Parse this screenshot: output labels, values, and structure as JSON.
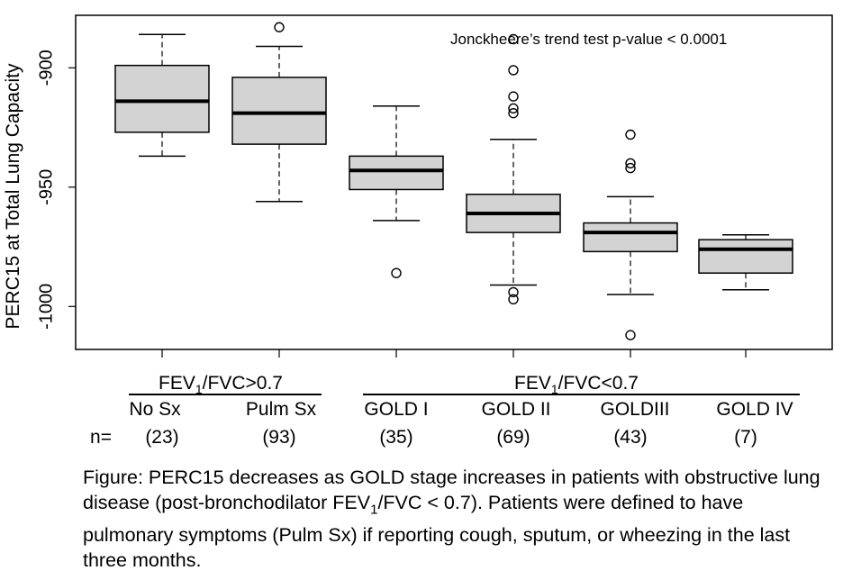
{
  "chart_data": {
    "type": "boxplot",
    "ylabel": "PERC15 at Total Lung Capacity",
    "ylim": [
      -1018,
      -878
    ],
    "yticks": [
      -900,
      -950,
      -1000
    ],
    "ytick_labels": [
      "-900",
      "-950",
      "-1000"
    ],
    "annotation": "Jonckheere’s trend test p-value < 0.0001",
    "n_prefix": "n=",
    "groups": [
      {
        "label_pre": "FEV",
        "label_sub": "1",
        "label_post": "/FVC>0.7",
        "categories": [
          "No Sx",
          "Pulm Sx"
        ]
      },
      {
        "label_pre": "FEV",
        "label_sub": "1",
        "label_post": "/FVC<0.7",
        "categories": [
          "GOLD I",
          "GOLD II",
          "GOLDIII",
          "GOLD IV"
        ]
      }
    ],
    "categories": [
      "No Sx",
      "Pulm Sx",
      "GOLD I",
      "GOLD II",
      "GOLDIII",
      "GOLD IV"
    ],
    "n_labels": [
      "(23)",
      "(93)",
      "(35)",
      "(69)",
      "(43)",
      "(7)"
    ],
    "boxes": [
      {
        "category": "No Sx",
        "whisker_low": -937,
        "q1": -927,
        "median": -914,
        "q3": -899,
        "whisker_high": -886,
        "outliers": []
      },
      {
        "category": "Pulm Sx",
        "whisker_low": -956,
        "q1": -932,
        "median": -919,
        "q3": -904,
        "whisker_high": -891,
        "outliers": [
          -883
        ]
      },
      {
        "category": "GOLD I",
        "whisker_low": -964,
        "q1": -951,
        "median": -943,
        "q3": -937,
        "whisker_high": -916,
        "outliers": [
          -986
        ]
      },
      {
        "category": "GOLD II",
        "whisker_low": -991,
        "q1": -969,
        "median": -961,
        "q3": -953,
        "whisker_high": -930,
        "outliers": [
          -919,
          -917,
          -912,
          -901,
          -888,
          -994,
          -997
        ]
      },
      {
        "category": "GOLDIII",
        "whisker_low": -995,
        "q1": -977,
        "median": -969,
        "q3": -965,
        "whisker_high": -954,
        "outliers": [
          -928,
          -940,
          -942,
          -1012
        ]
      },
      {
        "category": "GOLD IV",
        "whisker_low": -993,
        "q1": -986,
        "median": -976,
        "q3": -972,
        "whisker_high": -970,
        "outliers": []
      }
    ]
  },
  "caption": {
    "lead": "Figure: PERC15 decreases as GOLD stage increases in patients with obstructive lung disease (post-bronchodilator FEV",
    "sub": "1",
    "tail": "/FVC < 0.7). Patients were defined to have pulmonary symptoms (Pulm Sx) if reporting cough, sputum, or wheezing in the last three months."
  }
}
